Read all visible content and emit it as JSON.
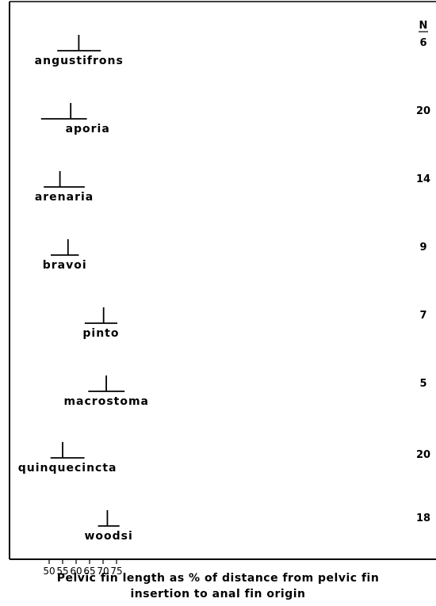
{
  "chart_data": {
    "type": "range",
    "xlabel_line1": "Pelvic fin length as % of distance from pelvic fin",
    "xlabel_line2": "insertion to anal fin origin",
    "n_header": "N",
    "xlim": [
      47,
      78
    ],
    "xticks": [
      50,
      55,
      60,
      65,
      70,
      75
    ],
    "series": [
      {
        "name": "angustifrons",
        "min": 53.0,
        "max": 69.2,
        "mean": 61.0,
        "n": "6"
      },
      {
        "name": "aporia",
        "min": 47.0,
        "max": 64.0,
        "mean": 58.0,
        "n": "20"
      },
      {
        "name": "arenaria",
        "min": 48.0,
        "max": 63.2,
        "mean": 54.0,
        "n": "14"
      },
      {
        "name": "bravoi",
        "min": 50.6,
        "max": 61.0,
        "mean": 57.0,
        "n": "9"
      },
      {
        "name": "pinto",
        "min": 63.2,
        "max": 75.3,
        "mean": 70.2,
        "n": "7"
      },
      {
        "name": "macrostoma",
        "min": 64.5,
        "max": 78.0,
        "mean": 71.2,
        "n": "5"
      },
      {
        "name": "quinquecincta",
        "min": 50.5,
        "max": 63.1,
        "mean": 55.0,
        "n": "20"
      },
      {
        "name": "woodsi",
        "min": 68.1,
        "max": 76.1,
        "mean": 71.6,
        "n": "18"
      }
    ]
  }
}
